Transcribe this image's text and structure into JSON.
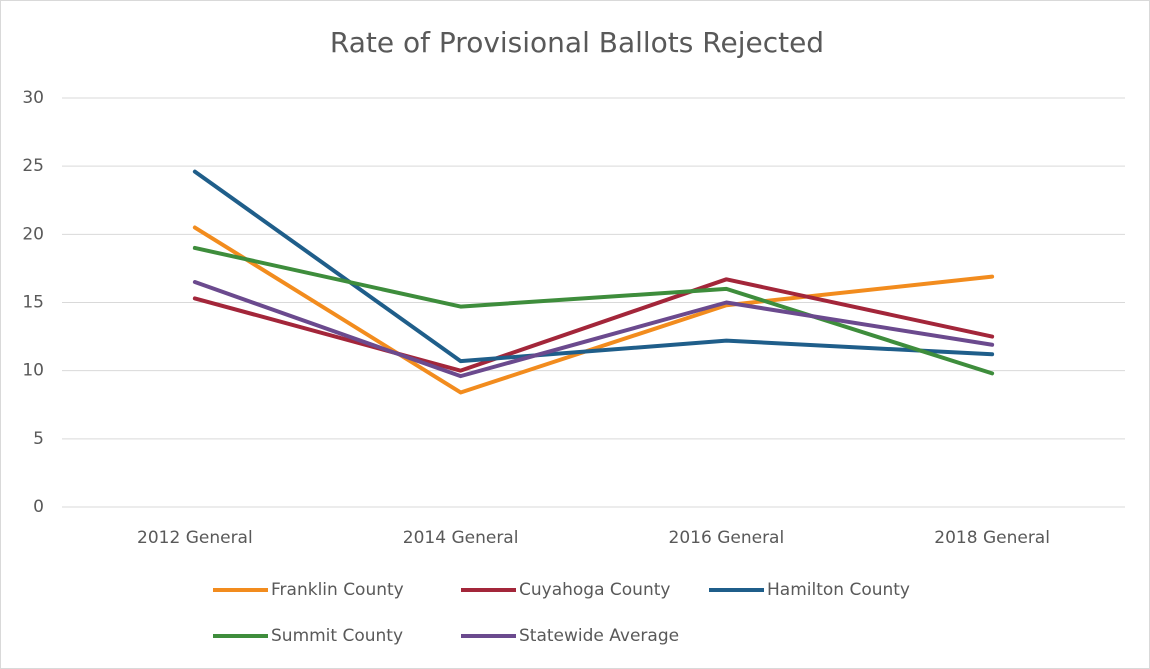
{
  "chart_data": {
    "type": "line",
    "title": "Rate of Provisional Ballots Rejected",
    "categories": [
      "2012 General",
      "2014 General",
      "2016 General",
      "2018 General"
    ],
    "series": [
      {
        "name": "Franklin County",
        "color": "#f28c1e",
        "values": [
          20.5,
          8.4,
          14.8,
          16.9
        ]
      },
      {
        "name": "Cuyahoga County",
        "color": "#a3263a",
        "values": [
          15.3,
          10.0,
          16.7,
          12.5
        ]
      },
      {
        "name": "Hamilton County",
        "color": "#1f5e8a",
        "values": [
          24.6,
          10.7,
          12.2,
          11.2
        ]
      },
      {
        "name": "Summit County",
        "color": "#3e8d3c",
        "values": [
          19.0,
          14.7,
          16.0,
          9.8
        ]
      },
      {
        "name": "Statewide Average",
        "color": "#6b4a8e",
        "values": [
          16.5,
          9.6,
          15.0,
          11.9
        ]
      }
    ],
    "ylim": [
      0,
      30
    ],
    "yticks": [
      0,
      5,
      10,
      15,
      20,
      25,
      30
    ],
    "grid": true,
    "legend": "bottom"
  }
}
